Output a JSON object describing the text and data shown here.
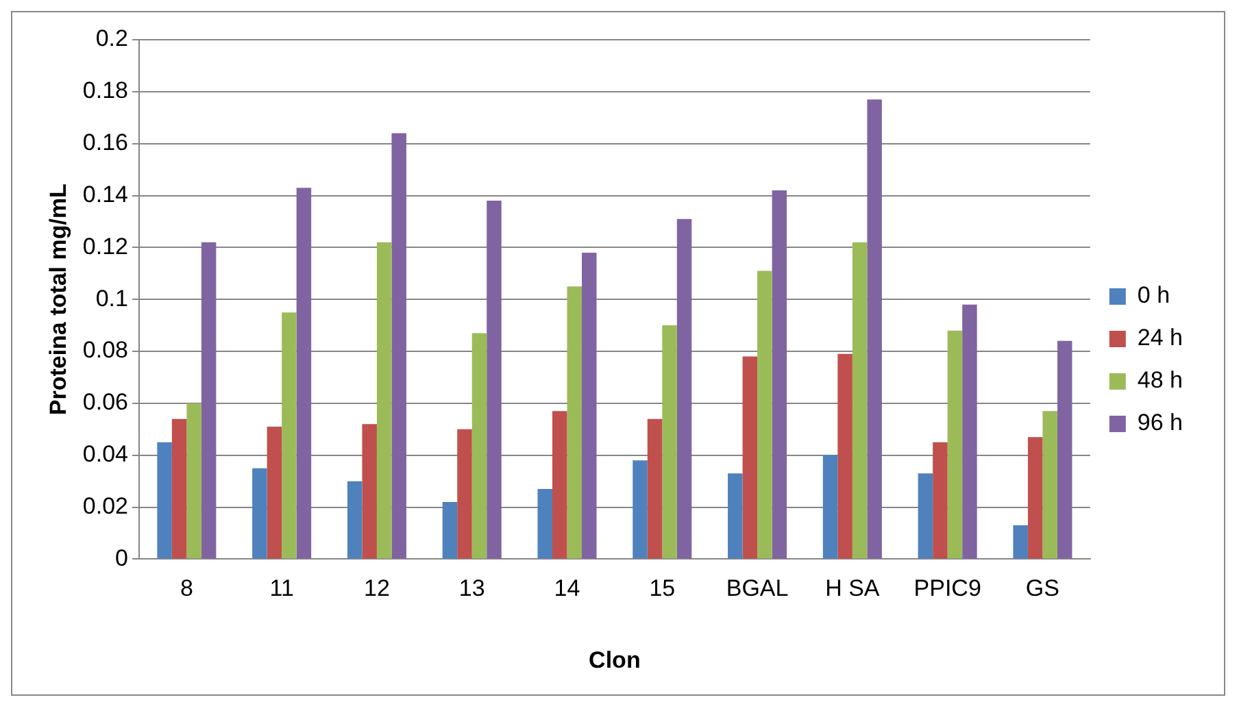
{
  "chart_data": {
    "type": "bar",
    "xlabel": "Clon",
    "ylabel": "Proteina total mg/mL",
    "categories": [
      "8",
      "11",
      "12",
      "13",
      "14",
      "15",
      "BGAL",
      "H SA",
      "PPIC9",
      "GS"
    ],
    "series": [
      {
        "name": "0 h",
        "color": "#4f81bd",
        "values": [
          0.045,
          0.035,
          0.03,
          0.022,
          0.027,
          0.038,
          0.033,
          0.04,
          0.033,
          0.013
        ]
      },
      {
        "name": "24 h",
        "color": "#c0504d",
        "values": [
          0.054,
          0.051,
          0.052,
          0.05,
          0.057,
          0.054,
          0.078,
          0.079,
          0.045,
          0.047
        ]
      },
      {
        "name": "48 h",
        "color": "#9bbb59",
        "values": [
          0.06,
          0.095,
          0.122,
          0.087,
          0.105,
          0.09,
          0.111,
          0.122,
          0.088,
          0.057
        ]
      },
      {
        "name": "96 h",
        "color": "#8064a2",
        "values": [
          0.122,
          0.143,
          0.164,
          0.138,
          0.118,
          0.131,
          0.142,
          0.177,
          0.098,
          0.084
        ]
      }
    ],
    "ylim": [
      0,
      0.2
    ],
    "yticks": [
      0,
      0.02,
      0.04,
      0.06,
      0.08,
      0.1,
      0.12,
      0.14,
      0.16,
      0.18,
      0.2
    ],
    "grid": "y",
    "legend": "right"
  }
}
